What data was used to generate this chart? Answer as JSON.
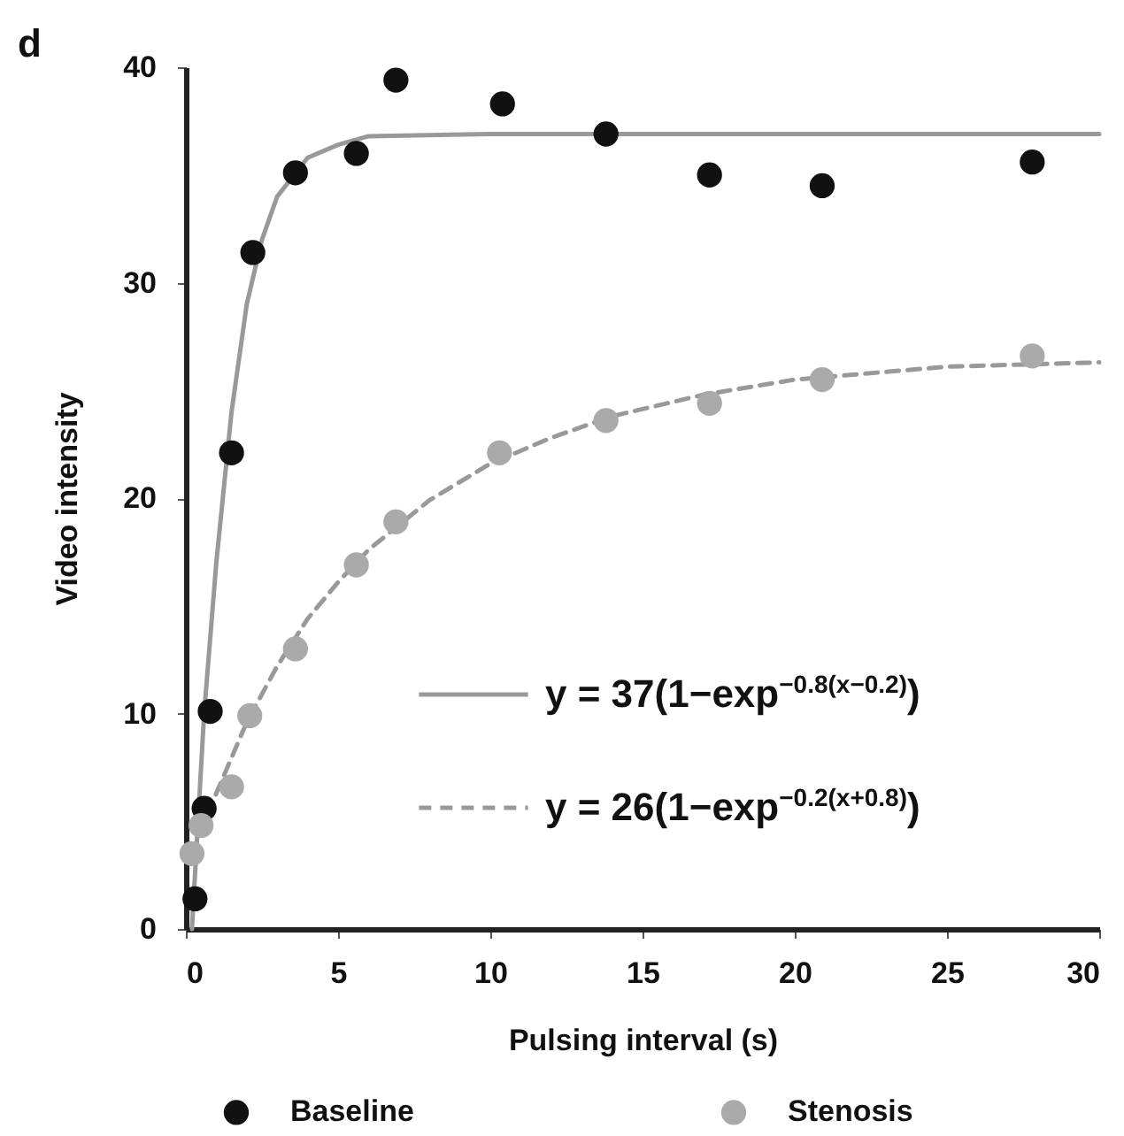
{
  "chart_data": {
    "type": "scatter",
    "title": "d",
    "xlabel": "Pulsing interval (s)",
    "ylabel": "Video intensity",
    "xlim": [
      0,
      30
    ],
    "xticks": [
      0,
      5,
      10,
      15,
      20,
      25,
      30
    ],
    "ylim": [
      0,
      40
    ],
    "yticks": [
      0,
      10,
      20,
      30,
      40
    ],
    "legend": "bottom",
    "series": [
      {
        "name": "Baseline",
        "marker": "circle",
        "color": "#111111",
        "x": [
          0.3,
          0.6,
          0.8,
          1.5,
          2.2,
          3.6,
          5.6,
          6.9,
          10.4,
          13.8,
          17.2,
          20.9,
          27.8
        ],
        "values": [
          1.4,
          5.6,
          10.1,
          22.1,
          31.4,
          35.1,
          36.0,
          39.4,
          38.3,
          36.9,
          35.0,
          34.5,
          35.6
        ]
      },
      {
        "name": "Stenosis",
        "marker": "circle",
        "color": "#aaaaaa",
        "x": [
          0.2,
          0.5,
          1.5,
          2.1,
          3.6,
          5.6,
          6.9,
          10.3,
          13.8,
          17.2,
          20.9,
          27.8
        ],
        "values": [
          3.5,
          4.8,
          6.6,
          9.9,
          13.0,
          16.9,
          18.9,
          22.1,
          23.6,
          24.4,
          25.5,
          26.6
        ]
      },
      {
        "name": "y = 37(1−exp$^{−0.8(x−0.2)}$)",
        "type": "line",
        "line_style": "solid",
        "color": "#999999",
        "x": [
          0.2,
          0.6,
          1.0,
          1.5,
          2.0,
          2.5,
          3.0,
          4.0,
          5.0,
          6.0,
          10,
          30
        ],
        "values": [
          0,
          10,
          17,
          24,
          29,
          32,
          34,
          35.8,
          36.4,
          36.8,
          36.9,
          36.9
        ]
      },
      {
        "name": "y = 26(1−exp$^{−0.2(x+0.8)}$)",
        "type": "line",
        "line_style": "dashed",
        "color": "#999999",
        "x": [
          0.2,
          1,
          2,
          3,
          4,
          5,
          6,
          8,
          10,
          12,
          14,
          17,
          20,
          25,
          30
        ],
        "values": [
          3.5,
          6.3,
          9.6,
          12.2,
          14.4,
          16.1,
          17.6,
          19.9,
          21.6,
          22.8,
          23.8,
          24.8,
          25.5,
          26.1,
          26.3
        ]
      }
    ]
  }
}
